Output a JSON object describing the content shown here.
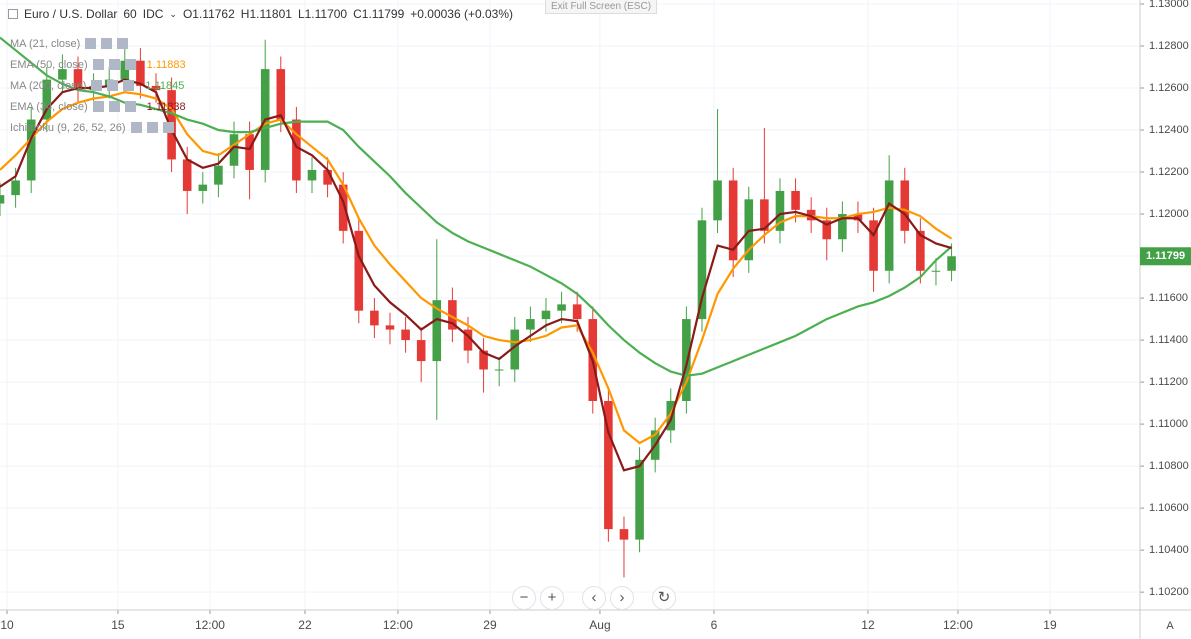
{
  "ui": {
    "exit_fullscreen": "Exit Full Screen (ESC)",
    "symbol": "Euro / U.S. Dollar",
    "interval": "60",
    "source": "IDC",
    "ohlc": [
      "O1.11762",
      "H1.11801",
      "L1.11700",
      "C1.11799",
      "+0.00036 (+0.03%)"
    ],
    "hidden_indicators": [
      "MA (21, close)",
      "Ichimoku (9, 26, 52, 26)"
    ]
  },
  "chart_data": {
    "type": "candlestick",
    "up_color": "#43a047",
    "down_color": "#e53935",
    "grid": true,
    "xlim": [
      0,
      730.8
    ],
    "ylim": [
      1.10115,
      1.13019
    ],
    "xticks": [
      {
        "value": 4.5,
        "label": "10"
      },
      {
        "value": 75.6,
        "label": "15"
      },
      {
        "value": 134.6,
        "label": "12:00"
      },
      {
        "value": 195.5,
        "label": "22"
      },
      {
        "value": 255.1,
        "label": "12:00"
      },
      {
        "value": 314.1,
        "label": "29"
      },
      {
        "value": 384.6,
        "label": "Aug"
      },
      {
        "value": 457.7,
        "label": "6"
      },
      {
        "value": 556.4,
        "label": "12"
      },
      {
        "value": 614.1,
        "label": "12:00"
      },
      {
        "value": 673.1,
        "label": "19"
      }
    ],
    "yticks": [
      {
        "value": 1.13,
        "label": "1.13000"
      },
      {
        "value": 1.128,
        "label": "1.12800"
      },
      {
        "value": 1.126,
        "label": "1.12600"
      },
      {
        "value": 1.124,
        "label": "1.12400"
      },
      {
        "value": 1.122,
        "label": "1.12200"
      },
      {
        "value": 1.12,
        "label": "1.12000"
      },
      {
        "value": 1.118,
        "label": "1.11800"
      },
      {
        "value": 1.116,
        "label": "1.11600"
      },
      {
        "value": 1.114,
        "label": "1.11400"
      },
      {
        "value": 1.112,
        "label": "1.11200"
      },
      {
        "value": 1.11,
        "label": "1.11000"
      },
      {
        "value": 1.108,
        "label": "1.10800"
      },
      {
        "value": 1.106,
        "label": "1.10600"
      },
      {
        "value": 1.104,
        "label": "1.10400"
      },
      {
        "value": 1.102,
        "label": "1.10200"
      }
    ],
    "x": [
      0,
      10,
      20,
      30,
      40,
      50,
      60,
      70,
      80,
      90,
      100,
      110,
      120,
      130,
      140,
      150,
      160,
      170,
      180,
      190,
      200,
      210,
      220,
      230,
      240,
      250,
      260,
      270,
      280,
      290,
      300,
      310,
      320,
      330,
      340,
      350,
      360,
      370,
      380,
      390,
      400,
      410,
      420,
      430,
      440,
      450,
      460,
      470,
      480,
      490,
      500,
      510,
      520,
      530,
      540,
      550,
      560,
      570,
      580,
      590,
      600,
      610
    ],
    "open": [
      1.1205,
      1.1209,
      1.1216,
      1.1245,
      1.1264,
      1.1269,
      1.1259,
      1.1261,
      1.1264,
      1.1273,
      1.1261,
      1.1259,
      1.1226,
      1.1211,
      1.1214,
      1.1223,
      1.1238,
      1.1221,
      1.1269,
      1.1245,
      1.1216,
      1.1221,
      1.1214,
      1.1192,
      1.1154,
      1.1147,
      1.1145,
      1.114,
      1.113,
      1.1159,
      1.1145,
      1.1135,
      1.1126,
      1.1126,
      1.1145,
      1.115,
      1.1154,
      1.1157,
      1.115,
      1.1111,
      1.105,
      1.1045,
      1.1083,
      1.1097,
      1.1111,
      1.115,
      1.1197,
      1.1216,
      1.1178,
      1.1207,
      1.1192,
      1.1211,
      1.1202,
      1.1197,
      1.1188,
      1.12,
      1.1197,
      1.1173,
      1.1216,
      1.1192,
      1.1173,
      1.1173
    ],
    "high": [
      1.1215,
      1.1222,
      1.1251,
      1.127,
      1.1276,
      1.1275,
      1.1267,
      1.127,
      1.128,
      1.1279,
      1.1267,
      1.1265,
      1.1232,
      1.122,
      1.1229,
      1.1244,
      1.1244,
      1.1283,
      1.1275,
      1.1251,
      1.1227,
      1.1227,
      1.122,
      1.1198,
      1.116,
      1.1153,
      1.1151,
      1.1146,
      1.1188,
      1.1165,
      1.1151,
      1.1141,
      1.1132,
      1.1151,
      1.1156,
      1.116,
      1.1163,
      1.1163,
      1.1156,
      1.1117,
      1.1056,
      1.1089,
      1.1103,
      1.1117,
      1.1156,
      1.1203,
      1.125,
      1.1222,
      1.1213,
      1.1241,
      1.1217,
      1.1217,
      1.1208,
      1.1203,
      1.1206,
      1.1206,
      1.1203,
      1.1228,
      1.1222,
      1.1198,
      1.1179,
      1.1186
    ],
    "low": [
      1.1199,
      1.1203,
      1.121,
      1.1239,
      1.1258,
      1.1253,
      1.1253,
      1.1255,
      1.1258,
      1.1255,
      1.1253,
      1.122,
      1.12,
      1.1205,
      1.1208,
      1.1217,
      1.1207,
      1.1215,
      1.1239,
      1.121,
      1.121,
      1.1208,
      1.1186,
      1.1148,
      1.1141,
      1.1138,
      1.1134,
      1.112,
      1.1102,
      1.1139,
      1.1129,
      1.1115,
      1.1118,
      1.112,
      1.1139,
      1.1144,
      1.1148,
      1.1144,
      1.1105,
      1.1044,
      1.1027,
      1.1039,
      1.1077,
      1.1091,
      1.1105,
      1.1144,
      1.1191,
      1.117,
      1.1172,
      1.1186,
      1.1186,
      1.1196,
      1.1191,
      1.1178,
      1.1182,
      1.1191,
      1.1163,
      1.1167,
      1.1186,
      1.1167,
      1.1166,
      1.1168
    ],
    "close": [
      1.1209,
      1.1216,
      1.1245,
      1.1264,
      1.1269,
      1.1259,
      1.1261,
      1.1264,
      1.1273,
      1.1261,
      1.1259,
      1.1226,
      1.1211,
      1.1214,
      1.1223,
      1.1238,
      1.1221,
      1.1269,
      1.1245,
      1.1216,
      1.1221,
      1.1214,
      1.1192,
      1.1154,
      1.1147,
      1.1145,
      1.114,
      1.113,
      1.1159,
      1.1145,
      1.1135,
      1.1126,
      1.1126,
      1.1145,
      1.115,
      1.1154,
      1.1157,
      1.115,
      1.1111,
      1.105,
      1.1045,
      1.1083,
      1.1097,
      1.1111,
      1.115,
      1.1197,
      1.1216,
      1.1178,
      1.1207,
      1.1192,
      1.1211,
      1.1202,
      1.1197,
      1.1188,
      1.12,
      1.1197,
      1.1173,
      1.1216,
      1.1192,
      1.1173,
      1.1173,
      1.11799
    ],
    "series": [
      {
        "name": "EMA (50, close)",
        "color": "#ff9800",
        "values": [
          1.1221,
          1.1228,
          1.1236,
          1.1244,
          1.125,
          1.1253,
          1.1255,
          1.1256,
          1.1258,
          1.1257,
          1.1255,
          1.125,
          1.1238,
          1.123,
          1.1228,
          1.1233,
          1.1238,
          1.1243,
          1.1245,
          1.1238,
          1.1232,
          1.1226,
          1.1214,
          1.1198,
          1.1185,
          1.1176,
          1.1168,
          1.116,
          1.1155,
          1.1151,
          1.1147,
          1.1142,
          1.114,
          1.1139,
          1.114,
          1.1142,
          1.1146,
          1.1147,
          1.1134,
          1.1117,
          1.1097,
          1.1091,
          1.1095,
          1.1105,
          1.112,
          1.114,
          1.1162,
          1.1174,
          1.1183,
          1.119,
          1.1196,
          1.1199,
          1.1199,
          1.1198,
          1.1198,
          1.12,
          1.1201,
          1.1203,
          1.1202,
          1.1199,
          1.1193,
          1.11883
        ]
      },
      {
        "name": "MA (200, close)",
        "color": "#4caf50",
        "values": [
          1.1284,
          1.1278,
          1.1272,
          1.1266,
          1.1262,
          1.1259,
          1.1258,
          1.1256,
          1.1253,
          1.1252,
          1.125,
          1.1248,
          1.1245,
          1.1243,
          1.124,
          1.1239,
          1.1239,
          1.1241,
          1.1243,
          1.1244,
          1.1244,
          1.1244,
          1.124,
          1.1232,
          1.1225,
          1.1218,
          1.121,
          1.1203,
          1.1196,
          1.1191,
          1.1187,
          1.1184,
          1.1181,
          1.1178,
          1.1175,
          1.1171,
          1.1167,
          1.1162,
          1.1155,
          1.1147,
          1.114,
          1.1134,
          1.1129,
          1.1125,
          1.1123,
          1.1124,
          1.1127,
          1.113,
          1.1133,
          1.1136,
          1.1139,
          1.1142,
          1.1146,
          1.115,
          1.1153,
          1.1156,
          1.1158,
          1.1161,
          1.1165,
          1.117,
          1.1178,
          1.11845
        ]
      },
      {
        "name": "EMA (34, close)",
        "color": "#8b1a1a",
        "values": [
          1.1213,
          1.1218,
          1.1236,
          1.125,
          1.1258,
          1.126,
          1.126,
          1.1261,
          1.1264,
          1.1262,
          1.1258,
          1.124,
          1.1226,
          1.1222,
          1.1224,
          1.1232,
          1.1231,
          1.1245,
          1.1247,
          1.1232,
          1.1228,
          1.1221,
          1.1206,
          1.118,
          1.1166,
          1.1158,
          1.1152,
          1.1145,
          1.115,
          1.1148,
          1.1142,
          1.1134,
          1.1131,
          1.1137,
          1.1142,
          1.1147,
          1.115,
          1.1149,
          1.113,
          1.1096,
          1.1078,
          1.108,
          1.109,
          1.1102,
          1.1128,
          1.116,
          1.1185,
          1.1183,
          1.1192,
          1.1193,
          1.12,
          1.1201,
          1.1199,
          1.1195,
          1.1198,
          1.1198,
          1.119,
          1.1205,
          1.12,
          1.119,
          1.1186,
          1.11838
        ]
      }
    ]
  }
}
